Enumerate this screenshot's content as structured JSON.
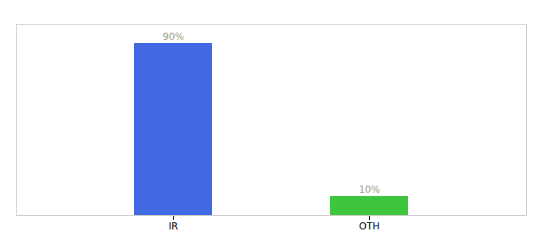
{
  "chart_data": {
    "type": "bar",
    "categories": [
      "IR",
      "OTH"
    ],
    "values": [
      90,
      10
    ],
    "value_labels": [
      "90%",
      "10%"
    ],
    "colors": [
      "#4169e1",
      "#3dc63d"
    ],
    "ylim": [
      0,
      100
    ],
    "data_labels": true,
    "grid": false,
    "tick_labels": "x"
  }
}
